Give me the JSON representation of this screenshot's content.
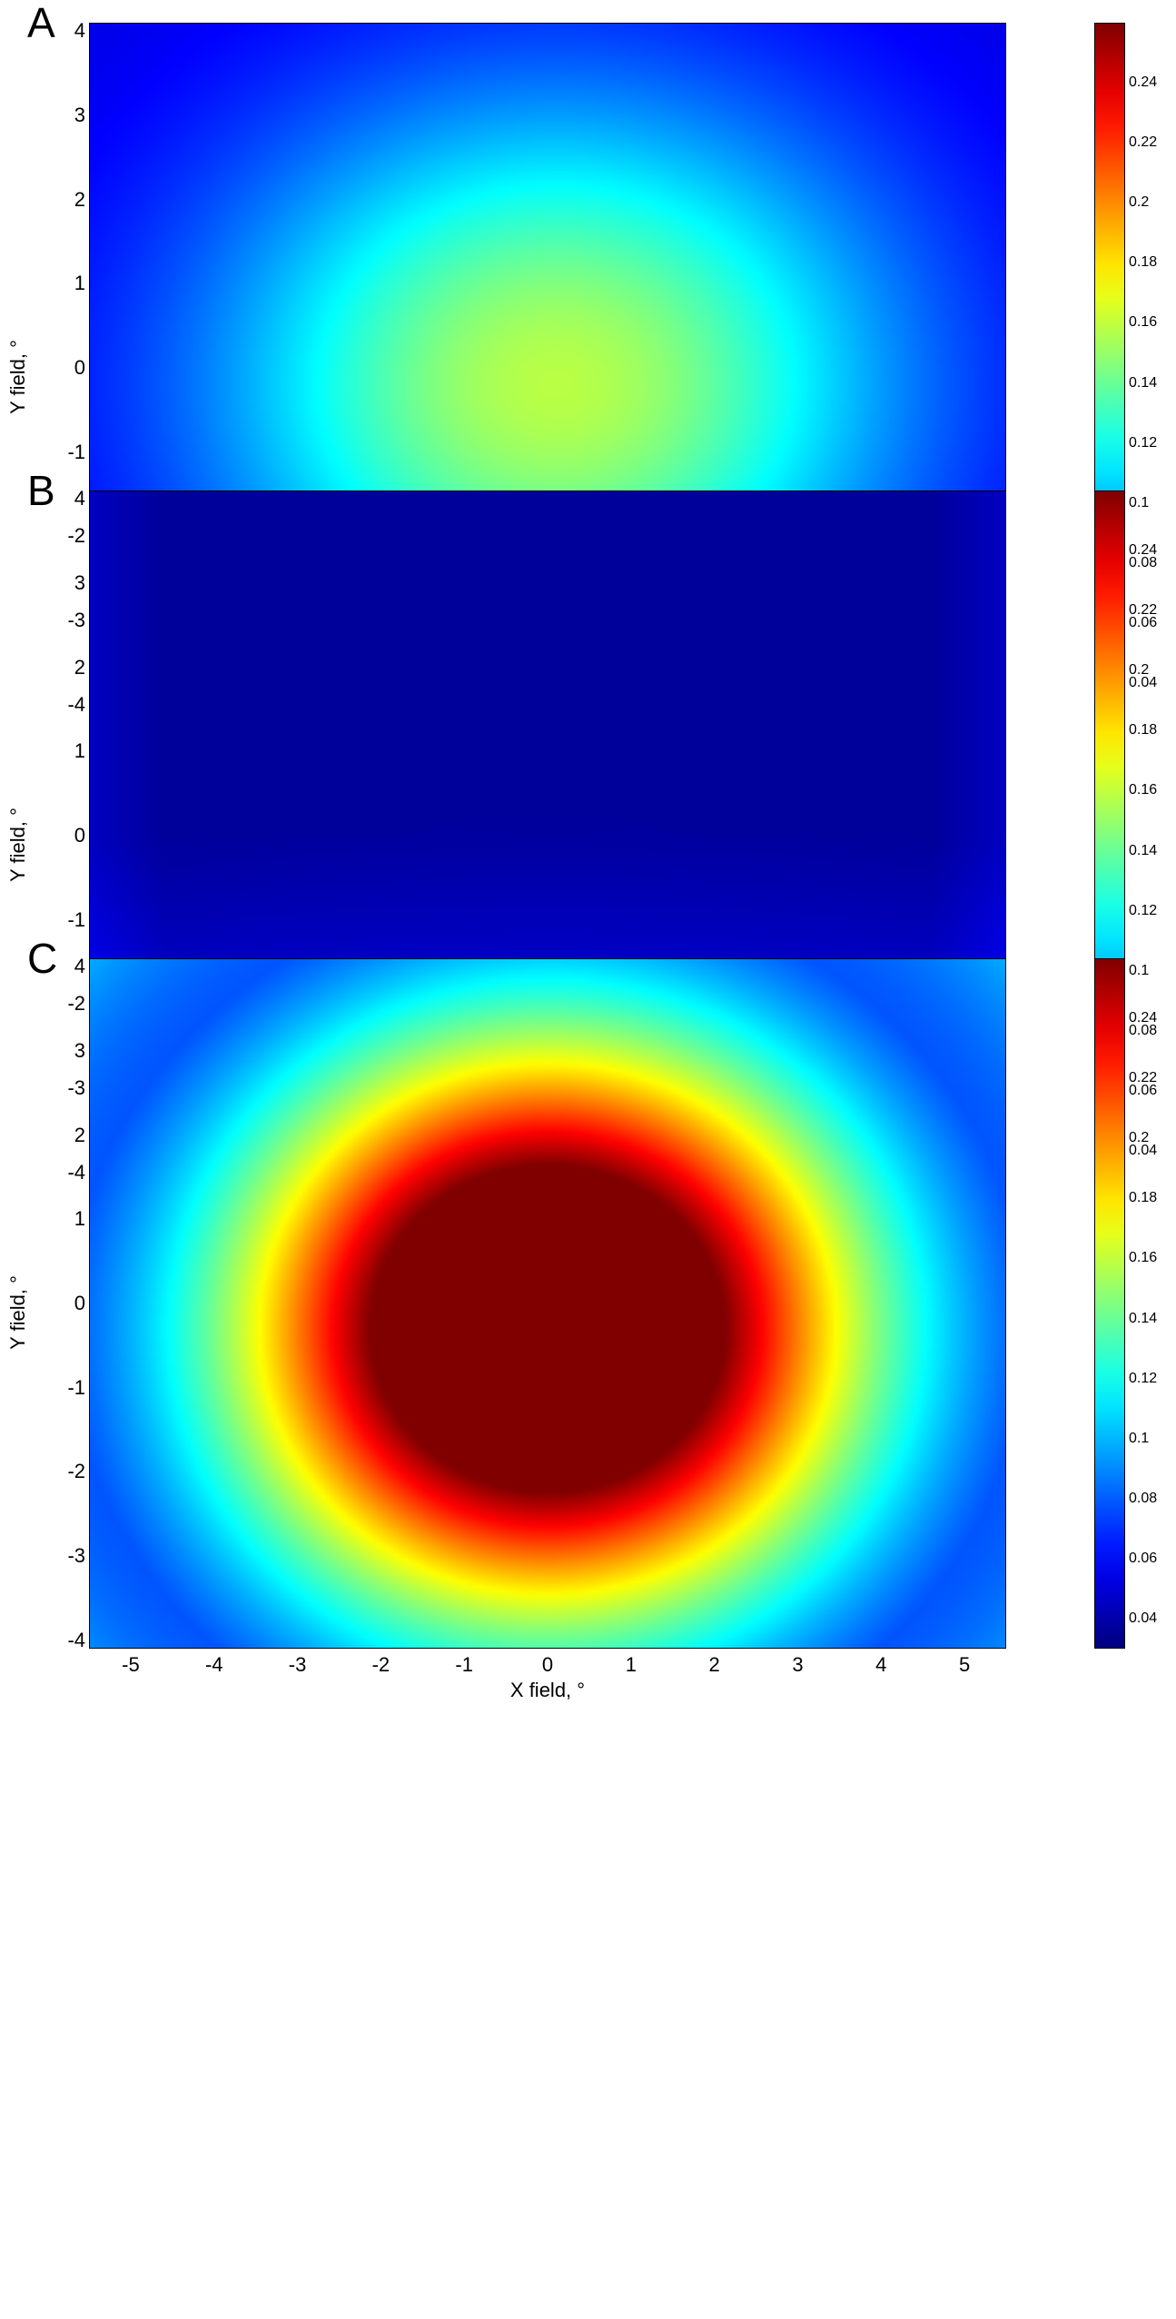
{
  "colormap": "jet",
  "colors": {
    "background": "#ffffff",
    "axis": "#000000"
  },
  "chart_data": [
    {
      "panel": "A",
      "type": "heatmap",
      "xlabel": "X field, °",
      "ylabel": "Y field, °",
      "xlim": [
        -5.5,
        5.5
      ],
      "ylim": [
        -4.1,
        4.1
      ],
      "x_ticks": [
        "-5",
        "-4",
        "-3",
        "-2",
        "-1",
        "0",
        "1",
        "2",
        "3",
        "4",
        "5"
      ],
      "y_ticks": [
        "-4",
        "-3",
        "-2",
        "-1",
        "0",
        "1",
        "2",
        "3",
        "4"
      ],
      "clim": [
        0.03,
        0.26
      ],
      "colorbar_ticks": [
        "0.04",
        "0.06",
        "0.08",
        "0.1",
        "0.12",
        "0.14",
        "0.16",
        "0.18",
        "0.2",
        "0.22",
        "0.24"
      ],
      "field_model": {
        "peak_value": 0.158,
        "peak_x": 0.1,
        "peak_y": -0.2,
        "edge_value": 0.05,
        "shape": "elliptical falloff"
      }
    },
    {
      "panel": "B",
      "type": "heatmap",
      "xlabel": "X field, °",
      "ylabel": "Y field, °",
      "xlim": [
        -5.5,
        5.5
      ],
      "ylim": [
        -4.1,
        4.1
      ],
      "x_ticks": [
        "-5",
        "-4",
        "-3",
        "-2",
        "-1",
        "0",
        "1",
        "2",
        "3",
        "4",
        "5"
      ],
      "y_ticks": [
        "-4",
        "-3",
        "-2",
        "-1",
        "0",
        "1",
        "2",
        "3",
        "4"
      ],
      "clim": [
        0.03,
        0.26
      ],
      "colorbar_ticks": [
        "0.04",
        "0.06",
        "0.08",
        "0.1",
        "0.12",
        "0.14",
        "0.16",
        "0.18",
        "0.2",
        "0.22",
        "0.24"
      ],
      "field_model": {
        "min_value": 0.036,
        "max_value": 0.06,
        "shape": "low upper region, rising toward bottom and corners"
      }
    },
    {
      "panel": "C",
      "type": "heatmap",
      "xlabel": "X field, °",
      "ylabel": "Y field, °",
      "xlim": [
        -5.5,
        5.5
      ],
      "ylim": [
        -4.1,
        4.1
      ],
      "x_ticks": [
        "-5",
        "-4",
        "-3",
        "-2",
        "-1",
        "0",
        "1",
        "2",
        "3",
        "4",
        "5"
      ],
      "y_ticks": [
        "-4",
        "-3",
        "-2",
        "-1",
        "0",
        "1",
        "2",
        "3",
        "4"
      ],
      "clim": [
        0.03,
        0.26
      ],
      "colorbar_ticks": [
        "0.04",
        "0.06",
        "0.08",
        "0.1",
        "0.12",
        "0.14",
        "0.16",
        "0.18",
        "0.2",
        "0.22",
        "0.24"
      ],
      "field_model": {
        "peak_value": 0.26,
        "peak_x": 0.0,
        "peak_y": -0.3,
        "edge_value": 0.05,
        "corner_value": 0.1,
        "shape": "strong central peak, radial falloff"
      }
    }
  ]
}
